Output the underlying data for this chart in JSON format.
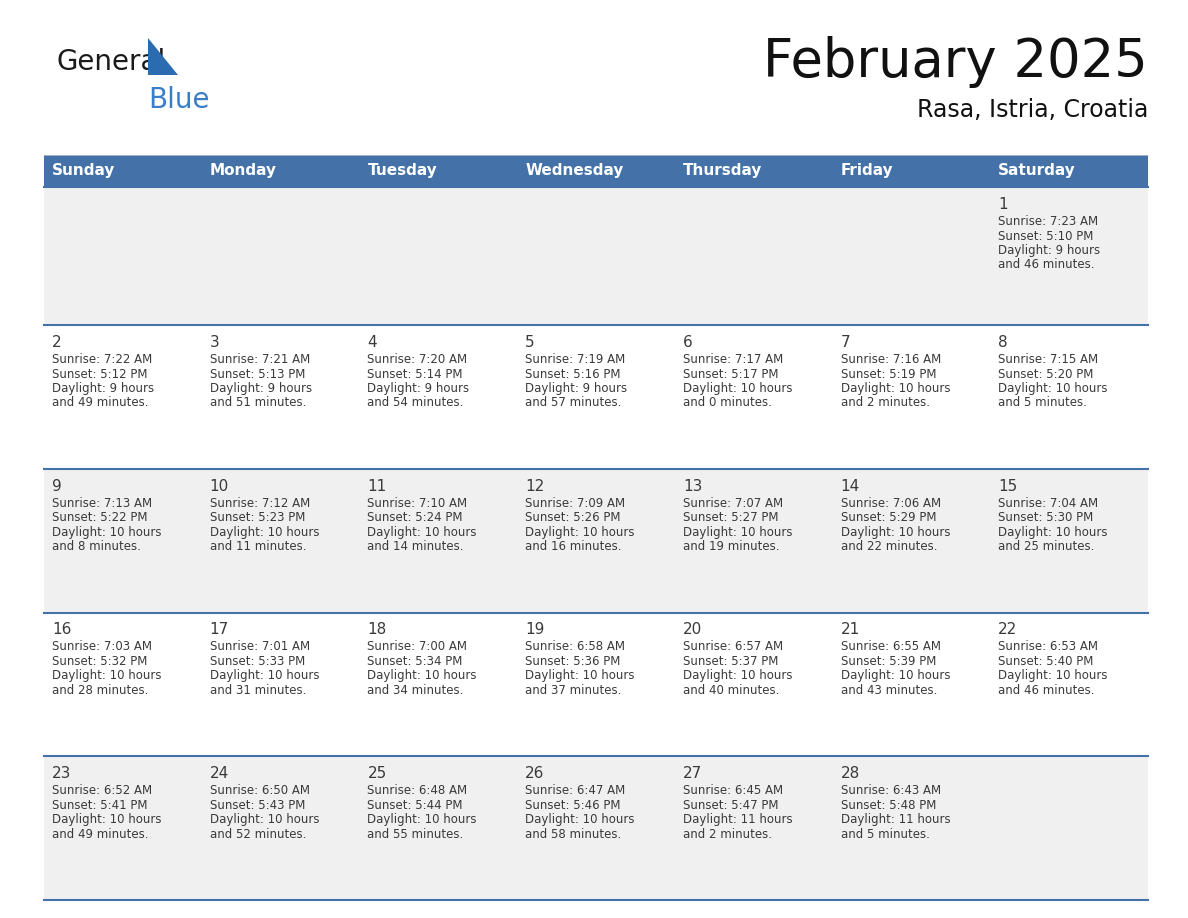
{
  "title": "February 2025",
  "subtitle": "Rasa, Istria, Croatia",
  "header_bg": "#4472A8",
  "header_text_color": "#FFFFFF",
  "days_of_week": [
    "Sunday",
    "Monday",
    "Tuesday",
    "Wednesday",
    "Thursday",
    "Friday",
    "Saturday"
  ],
  "row_bg_even": "#F0F0F0",
  "row_bg_odd": "#FFFFFF",
  "cell_border_color": "#4472A8",
  "date_text_color": "#3A3A3A",
  "info_text_color": "#3A3A3A",
  "logo_general_color": "#1a1a1a",
  "logo_blue_color": "#3A7DC9",
  "logo_triangle_color": "#2B6CB0",
  "calendar_data": [
    [
      null,
      null,
      null,
      null,
      null,
      null,
      {
        "day": 1,
        "sunrise": "7:23 AM",
        "sunset": "5:10 PM",
        "daylight": "9 hours and 46 minutes."
      }
    ],
    [
      {
        "day": 2,
        "sunrise": "7:22 AM",
        "sunset": "5:12 PM",
        "daylight": "9 hours and 49 minutes."
      },
      {
        "day": 3,
        "sunrise": "7:21 AM",
        "sunset": "5:13 PM",
        "daylight": "9 hours and 51 minutes."
      },
      {
        "day": 4,
        "sunrise": "7:20 AM",
        "sunset": "5:14 PM",
        "daylight": "9 hours and 54 minutes."
      },
      {
        "day": 5,
        "sunrise": "7:19 AM",
        "sunset": "5:16 PM",
        "daylight": "9 hours and 57 minutes."
      },
      {
        "day": 6,
        "sunrise": "7:17 AM",
        "sunset": "5:17 PM",
        "daylight": "10 hours and 0 minutes."
      },
      {
        "day": 7,
        "sunrise": "7:16 AM",
        "sunset": "5:19 PM",
        "daylight": "10 hours and 2 minutes."
      },
      {
        "day": 8,
        "sunrise": "7:15 AM",
        "sunset": "5:20 PM",
        "daylight": "10 hours and 5 minutes."
      }
    ],
    [
      {
        "day": 9,
        "sunrise": "7:13 AM",
        "sunset": "5:22 PM",
        "daylight": "10 hours and 8 minutes."
      },
      {
        "day": 10,
        "sunrise": "7:12 AM",
        "sunset": "5:23 PM",
        "daylight": "10 hours and 11 minutes."
      },
      {
        "day": 11,
        "sunrise": "7:10 AM",
        "sunset": "5:24 PM",
        "daylight": "10 hours and 14 minutes."
      },
      {
        "day": 12,
        "sunrise": "7:09 AM",
        "sunset": "5:26 PM",
        "daylight": "10 hours and 16 minutes."
      },
      {
        "day": 13,
        "sunrise": "7:07 AM",
        "sunset": "5:27 PM",
        "daylight": "10 hours and 19 minutes."
      },
      {
        "day": 14,
        "sunrise": "7:06 AM",
        "sunset": "5:29 PM",
        "daylight": "10 hours and 22 minutes."
      },
      {
        "day": 15,
        "sunrise": "7:04 AM",
        "sunset": "5:30 PM",
        "daylight": "10 hours and 25 minutes."
      }
    ],
    [
      {
        "day": 16,
        "sunrise": "7:03 AM",
        "sunset": "5:32 PM",
        "daylight": "10 hours and 28 minutes."
      },
      {
        "day": 17,
        "sunrise": "7:01 AM",
        "sunset": "5:33 PM",
        "daylight": "10 hours and 31 minutes."
      },
      {
        "day": 18,
        "sunrise": "7:00 AM",
        "sunset": "5:34 PM",
        "daylight": "10 hours and 34 minutes."
      },
      {
        "day": 19,
        "sunrise": "6:58 AM",
        "sunset": "5:36 PM",
        "daylight": "10 hours and 37 minutes."
      },
      {
        "day": 20,
        "sunrise": "6:57 AM",
        "sunset": "5:37 PM",
        "daylight": "10 hours and 40 minutes."
      },
      {
        "day": 21,
        "sunrise": "6:55 AM",
        "sunset": "5:39 PM",
        "daylight": "10 hours and 43 minutes."
      },
      {
        "day": 22,
        "sunrise": "6:53 AM",
        "sunset": "5:40 PM",
        "daylight": "10 hours and 46 minutes."
      }
    ],
    [
      {
        "day": 23,
        "sunrise": "6:52 AM",
        "sunset": "5:41 PM",
        "daylight": "10 hours and 49 minutes."
      },
      {
        "day": 24,
        "sunrise": "6:50 AM",
        "sunset": "5:43 PM",
        "daylight": "10 hours and 52 minutes."
      },
      {
        "day": 25,
        "sunrise": "6:48 AM",
        "sunset": "5:44 PM",
        "daylight": "10 hours and 55 minutes."
      },
      {
        "day": 26,
        "sunrise": "6:47 AM",
        "sunset": "5:46 PM",
        "daylight": "10 hours and 58 minutes."
      },
      {
        "day": 27,
        "sunrise": "6:45 AM",
        "sunset": "5:47 PM",
        "daylight": "11 hours and 2 minutes."
      },
      {
        "day": 28,
        "sunrise": "6:43 AM",
        "sunset": "5:48 PM",
        "daylight": "11 hours and 5 minutes."
      },
      null
    ]
  ]
}
